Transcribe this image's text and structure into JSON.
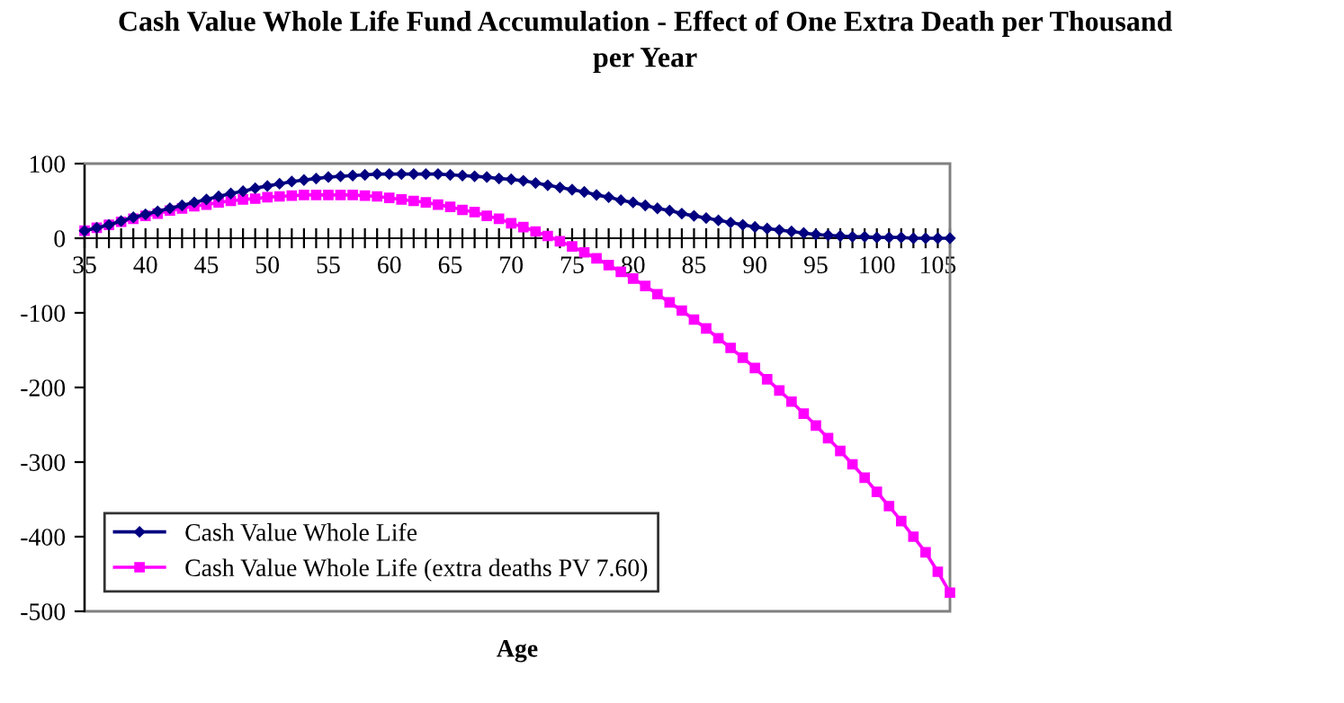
{
  "chart_data": {
    "type": "line",
    "title": "Cash Value Whole Life Fund Accumulation - Effect of One Extra Death per Thousand\nper Year",
    "xlabel": "Age",
    "categories": [
      "35",
      null,
      null,
      null,
      null,
      "40",
      null,
      null,
      null,
      null,
      "45",
      null,
      null,
      null,
      null,
      "50",
      null,
      null,
      null,
      null,
      "55",
      null,
      null,
      null,
      null,
      "60",
      null,
      null,
      null,
      null,
      "65",
      null,
      null,
      null,
      null,
      "70",
      null,
      null,
      null,
      null,
      "75",
      null,
      null,
      null,
      null,
      "80",
      null,
      null,
      null,
      null,
      "85",
      null,
      null,
      null,
      null,
      "90",
      null,
      null,
      null,
      null,
      "95",
      null,
      null,
      null,
      null,
      "100",
      null,
      null,
      null,
      null,
      "105",
      null
    ],
    "series": [
      {
        "name": "Cash Value Whole Life",
        "color": "#000080",
        "marker": "diamond",
        "values": [
          10,
          14,
          18,
          23,
          28,
          32,
          36,
          40,
          44,
          48,
          52,
          56,
          60,
          63,
          67,
          70,
          73,
          76,
          78,
          80,
          82,
          83,
          84,
          85,
          86,
          86,
          86,
          86,
          86,
          86,
          85,
          84,
          83,
          82,
          80,
          79,
          77,
          74,
          71,
          68,
          65,
          62,
          58,
          55,
          51,
          48,
          44,
          40,
          37,
          33,
          30,
          27,
          24,
          21,
          18,
          15,
          13,
          11,
          9,
          7,
          5,
          4,
          3,
          2,
          2,
          1,
          1,
          1,
          0,
          0,
          0,
          0
        ]
      },
      {
        "name": "Cash Value Whole Life (extra deaths PV 7.60)",
        "color": "#ff00ff",
        "marker": "square",
        "values": [
          10,
          14,
          18,
          22,
          26,
          30,
          33,
          37,
          40,
          43,
          45,
          48,
          50,
          52,
          53,
          55,
          56,
          57,
          58,
          58,
          58,
          58,
          58,
          57,
          56,
          54,
          52,
          50,
          48,
          45,
          42,
          38,
          35,
          30,
          26,
          20,
          15,
          9,
          3,
          -4,
          -11,
          -19,
          -27,
          -36,
          -45,
          -54,
          -64,
          -75,
          -86,
          -97,
          -109,
          -121,
          -134,
          -147,
          -160,
          -174,
          -189,
          -204,
          -219,
          -235,
          -251,
          -268,
          -285,
          -303,
          -321,
          -340,
          -359,
          -379,
          -400,
          -421,
          -447,
          -475
        ]
      }
    ],
    "ylim": [
      -500,
      100
    ],
    "yticks": [
      -500,
      -400,
      -300,
      -200,
      -100,
      0,
      100
    ],
    "grid": false,
    "legend": "bottom left",
    "line_style": "solid"
  }
}
